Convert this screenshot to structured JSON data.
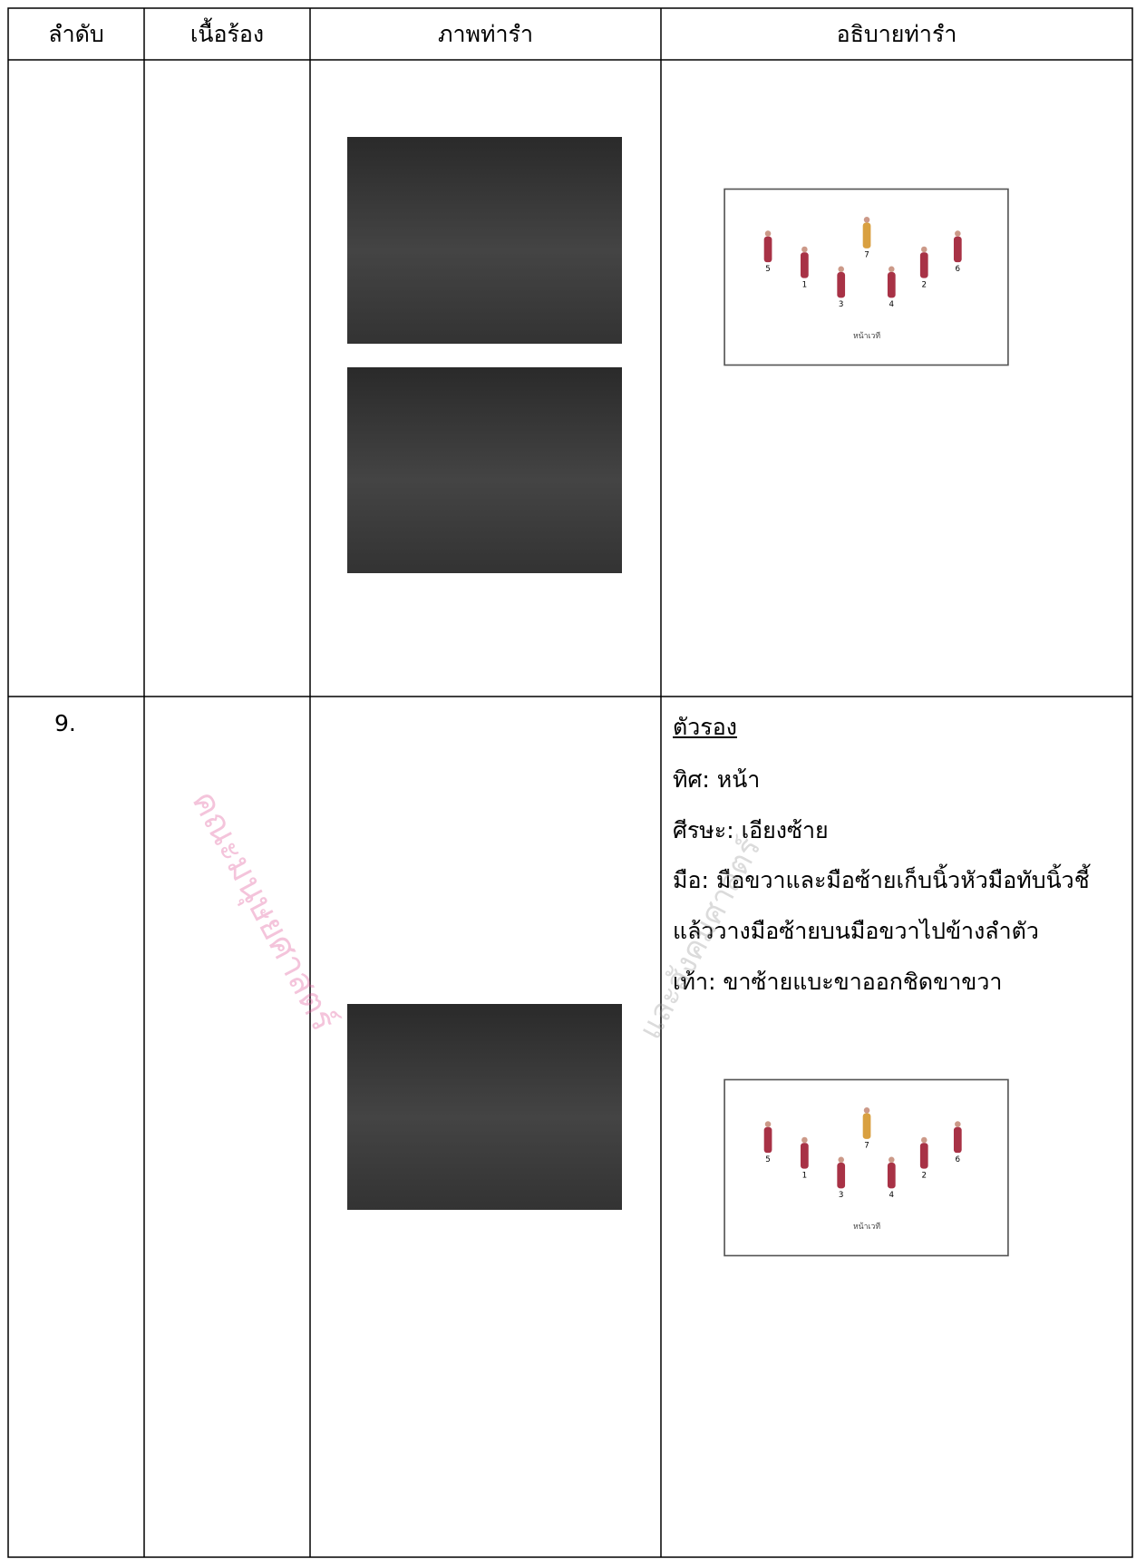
{
  "table": {
    "headers": [
      "ลำดับ",
      "เนื้อร้อง",
      "ภาพท่ารำ",
      "อธิบายท่ารำ"
    ],
    "rows": [
      {
        "diagram": {
          "positions": [
            "5",
            "1",
            "3",
            "7",
            "4",
            "2",
            "6"
          ],
          "stage_label": "หน้าเวที"
        }
      },
      {
        "number": "9.",
        "description": {
          "heading": "ตัวรอง",
          "lines": [
            "ทิศ:  หน้า",
            "ศีรษะ: เอียงซ้าย",
            "มือ: มือขวาและมือซ้ายเก็บนิ้วหัวมือทับนิ้วชี้",
            "แล้ววางมือซ้ายบนมือขวาไปข้างลำตัว",
            "เท้า: ขาซ้ายแบะขาออกชิดขาขวา"
          ]
        },
        "diagram": {
          "positions": [
            "5",
            "1",
            "3",
            "7",
            "4",
            "2",
            "6"
          ],
          "stage_label": "หน้าเวที"
        }
      }
    ]
  },
  "watermark": {
    "left": "คณะมนุษยศาสตร์",
    "right": "และสังคมศาสตร์"
  }
}
